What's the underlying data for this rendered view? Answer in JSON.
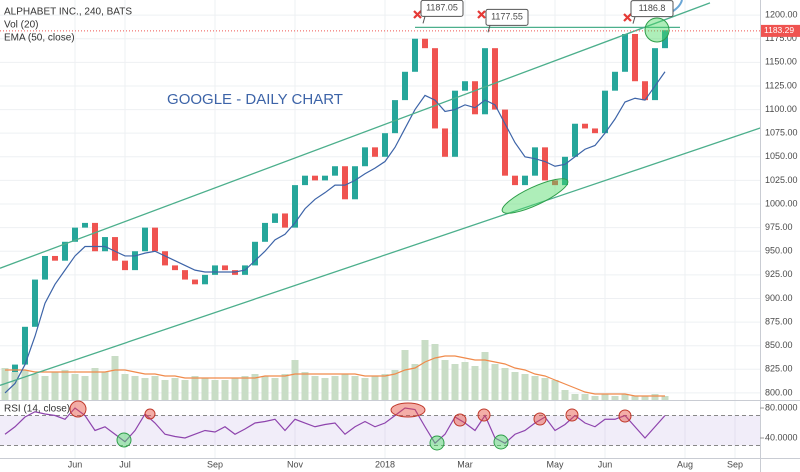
{
  "chart_data": [
    {
      "type": "line",
      "categories": [
        null,
        null,
        null,
        null,
        null,
        null,
        null,
        "Jun",
        null,
        null,
        null,
        null,
        "Jul",
        null,
        null,
        null,
        null,
        null,
        null,
        null,
        null,
        "Sep",
        null,
        null,
        null,
        null,
        null,
        null,
        null,
        "Nov",
        null,
        null,
        null,
        null,
        null,
        null,
        null,
        null,
        "2018",
        null,
        null,
        null,
        null,
        null,
        null,
        null,
        "Mar",
        null,
        null,
        null,
        null,
        null,
        null,
        null,
        null,
        "May",
        null,
        null,
        null,
        null,
        "Jun",
        null,
        null,
        null,
        null,
        null,
        null,
        null,
        "Aug",
        null,
        null,
        null,
        null,
        "Sep",
        null,
        null
      ],
      "series": [
        {
          "name": "ALPHABET INC., 240, BATS",
          "style": "candle",
          "up_color": "#26a69a",
          "down_color": "#ef5350",
          "values": [
            815,
            830,
            870,
            920,
            945,
            940,
            960,
            975,
            980,
            950,
            965,
            940,
            930,
            950,
            975,
            950,
            935,
            930,
            920,
            915,
            925,
            935,
            930,
            925,
            935,
            960,
            980,
            990,
            975,
            1020,
            1030,
            1025,
            1030,
            1040,
            1005,
            1040,
            1060,
            1050,
            1075,
            1110,
            1140,
            1175,
            1165,
            1080,
            1050,
            1120,
            1130,
            1095,
            1165,
            1100,
            1030,
            1020,
            1030,
            1060,
            1025,
            1020,
            1050,
            1085,
            1080,
            1075,
            1120,
            1140,
            1180,
            1130,
            1110,
            1165,
            1184,
            null,
            null,
            null,
            null,
            null,
            null,
            null,
            null,
            null
          ]
        },
        {
          "name": "Vol (20)",
          "style": "bar",
          "axis": "y2",
          "color": "#c9ddc6",
          "values": [
            1.6,
            1.4,
            1.5,
            1.3,
            1.2,
            1.4,
            1.5,
            1.3,
            1.2,
            1.6,
            1.4,
            2.2,
            1.3,
            1.2,
            1.1,
            1.2,
            1.0,
            1.1,
            1.0,
            1.2,
            1.1,
            1.0,
            1.0,
            1.1,
            1.2,
            1.3,
            1.2,
            1.1,
            1.3,
            2.0,
            1.4,
            1.2,
            1.1,
            1.2,
            1.3,
            1.2,
            1.1,
            1.2,
            1.3,
            1.5,
            2.5,
            1.8,
            3.0,
            2.8,
            2.0,
            1.8,
            1.9,
            1.7,
            2.4,
            1.8,
            1.6,
            1.4,
            1.3,
            1.2,
            1.1,
            1.0,
            0.5,
            0.3,
            0.3,
            0.2,
            0.3,
            0.2,
            0.3,
            0.2,
            0.2,
            0.3,
            0.2,
            null,
            null,
            null,
            null,
            null,
            null,
            null,
            null,
            null
          ]
        },
        {
          "style": "line",
          "axis": "y2",
          "color": "#f08a4b",
          "values": [
            1.5,
            1.5,
            1.5,
            1.4,
            1.4,
            1.4,
            1.4,
            1.4,
            1.4,
            1.4,
            1.4,
            1.5,
            1.5,
            1.4,
            1.3,
            1.3,
            1.2,
            1.2,
            1.1,
            1.1,
            1.1,
            1.1,
            1.1,
            1.1,
            1.1,
            1.1,
            1.2,
            1.2,
            1.2,
            1.3,
            1.3,
            1.3,
            1.3,
            1.3,
            1.3,
            1.3,
            1.2,
            1.2,
            1.2,
            1.3,
            1.5,
            1.6,
            1.9,
            2.1,
            2.2,
            2.2,
            2.1,
            2.0,
            2.0,
            1.9,
            1.8,
            1.6,
            1.5,
            1.3,
            1.2,
            1.0,
            0.8,
            0.6,
            0.4,
            0.3,
            0.3,
            0.3,
            0.3,
            0.2,
            0.2,
            0.2,
            0.2,
            null,
            null,
            null,
            null,
            null,
            null,
            null,
            null,
            null
          ]
        },
        {
          "name": "EMA (50, close)",
          "style": "line",
          "color": "#3d64a8",
          "values": [
            800,
            810,
            830,
            860,
            895,
            915,
            930,
            945,
            955,
            955,
            955,
            950,
            945,
            945,
            948,
            950,
            945,
            940,
            935,
            930,
            928,
            928,
            928,
            928,
            930,
            940,
            950,
            962,
            968,
            980,
            995,
            1005,
            1012,
            1020,
            1020,
            1025,
            1032,
            1038,
            1045,
            1060,
            1080,
            1100,
            1115,
            1110,
            1098,
            1100,
            1105,
            1102,
            1110,
            1105,
            1085,
            1065,
            1050,
            1048,
            1045,
            1040,
            1042,
            1050,
            1058,
            1062,
            1075,
            1090,
            1108,
            1112,
            1110,
            1125,
            1140,
            null,
            null,
            null,
            null,
            null,
            null,
            null,
            null,
            null
          ]
        }
      ],
      "ylim": [
        792.5,
        1216
      ],
      "y2lim": [
        0,
        20
      ],
      "yticks": [
        {
          "value": 800,
          "label": "800.00"
        },
        {
          "value": 825,
          "label": "825.00"
        },
        {
          "value": 850,
          "label": "850.00"
        },
        {
          "value": 875,
          "label": "875.00"
        },
        {
          "value": 900,
          "label": "900.00"
        },
        {
          "value": 925,
          "label": "925.00"
        },
        {
          "value": 950,
          "label": "950.00"
        },
        {
          "value": 975,
          "label": "975.00"
        },
        {
          "value": 1000,
          "label": "1000.00"
        },
        {
          "value": 1025,
          "label": "1025.00"
        },
        {
          "value": 1050,
          "label": "1050.00"
        },
        {
          "value": 1075,
          "label": "1075.00"
        },
        {
          "value": 1100,
          "label": "1100.00"
        },
        {
          "value": 1125,
          "label": "1125.00"
        },
        {
          "value": 1150,
          "label": "1150.00"
        },
        {
          "value": 1175,
          "label": "1175.00"
        },
        {
          "value": 1200,
          "label": "1200.00"
        }
      ],
      "grid": true,
      "last_price": 1183.29,
      "last_price_color": "#ef5350",
      "trendlines": [
        {
          "color": "#4caf8c",
          "x": [
            -0.5,
            70.5
          ],
          "y": [
            932,
            1213
          ]
        },
        {
          "color": "#4caf8c",
          "x": [
            -0.5,
            76.5
          ],
          "y": [
            808,
            1084
          ]
        },
        {
          "color": "#4caf8c",
          "x": [
            41,
            67.5
          ],
          "y": [
            1187,
            1187
          ]
        }
      ],
      "annotations": [
        {
          "text": "1187.05",
          "style": "callout",
          "x": 42,
          "y": 1187.05
        },
        {
          "text": "1177.55",
          "style": "callout",
          "x": 48.5,
          "y": 1177.55
        },
        {
          "text": "1186.8",
          "style": "callout",
          "x": 63,
          "y": 1186.8
        },
        {
          "text": "GOOGLE - DAILY CHART",
          "style": "plain",
          "x": 25,
          "y": 1110
        }
      ]
    },
    {
      "type": "line",
      "series": [
        {
          "name": "RSI (14, close)",
          "style": "line",
          "color": "#8e44ad",
          "values": [
            45,
            55,
            68,
            75,
            72,
            70,
            65,
            80,
            70,
            50,
            55,
            45,
            35,
            50,
            72,
            60,
            45,
            42,
            40,
            45,
            50,
            48,
            55,
            45,
            52,
            60,
            62,
            65,
            50,
            65,
            60,
            55,
            58,
            60,
            45,
            55,
            62,
            55,
            60,
            70,
            80,
            78,
            55,
            33,
            45,
            68,
            60,
            50,
            70,
            40,
            33,
            45,
            50,
            60,
            68,
            50,
            58,
            70,
            60,
            55,
            65,
            65,
            70,
            55,
            40,
            55,
            70,
            null,
            null,
            null,
            null,
            null,
            null,
            null,
            null,
            null
          ]
        }
      ],
      "ylim": [
        13.3,
        90.7
      ],
      "yticks": [
        {
          "value": 80,
          "label": "80.0000"
        },
        {
          "value": 40,
          "label": "40.0000"
        }
      ],
      "bands": [
        30,
        70
      ],
      "band_color": "#9575cd"
    }
  ]
}
